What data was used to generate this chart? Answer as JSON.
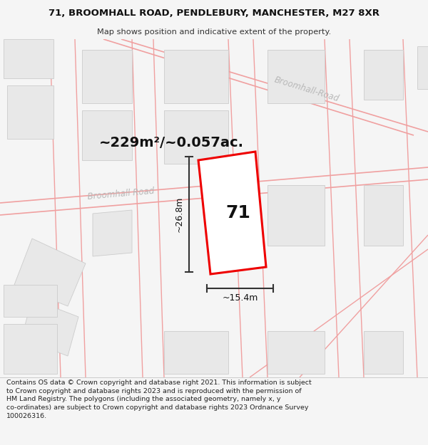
{
  "title_line1": "71, BROOMHALL ROAD, PENDLEBURY, MANCHESTER, M27 8XR",
  "title_line2": "Map shows position and indicative extent of the property.",
  "area_text": "~229m²/~0.057ac.",
  "width_label": "~15.4m",
  "height_label": "~26.8m",
  "number_label": "71",
  "footer_text": "Contains OS data © Crown copyright and database right 2021. This information is subject to Crown copyright and database rights 2023 and is reproduced with the permission of HM Land Registry. The polygons (including the associated geometry, namely x, y co-ordinates) are subject to Crown copyright and database rights 2023 Ordnance Survey 100026316.",
  "bg_color": "#f5f5f5",
  "map_bg": "#ffffff",
  "plot_color": "#ee0000",
  "road_line_color": "#f0a0a0",
  "road_label_color": "#b8b8b8",
  "building_fill": "#e8e8e8",
  "building_edge": "#cccccc",
  "dim_color": "#333333"
}
